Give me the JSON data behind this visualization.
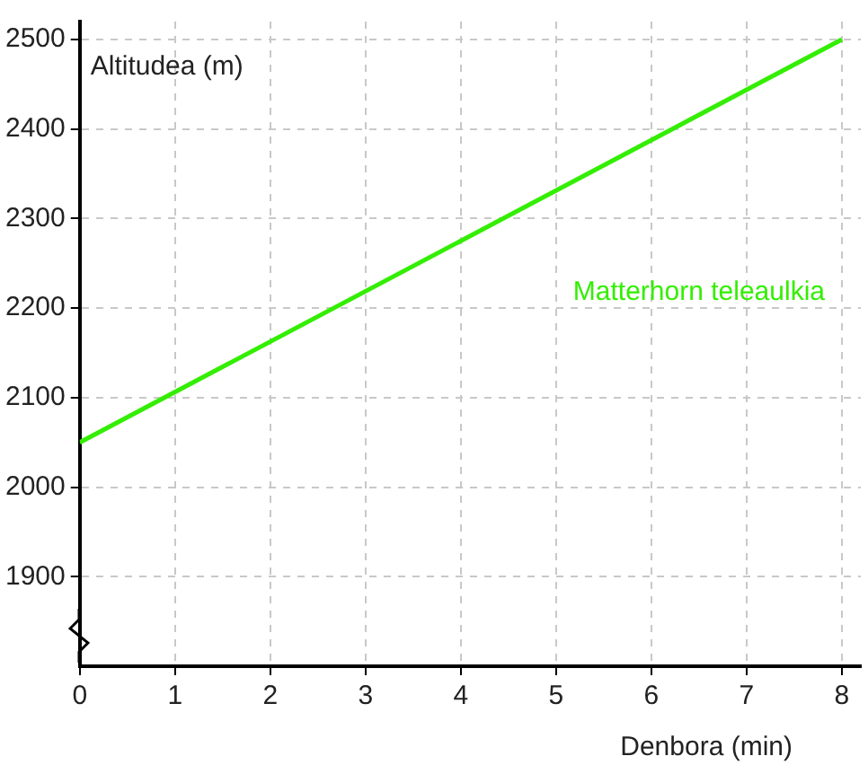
{
  "chart_data": {
    "type": "line",
    "xlabel": "Denbora (min)",
    "ylabel": "Altitudea (m)",
    "xlim": [
      0,
      8.2
    ],
    "xticks": [
      0,
      1,
      2,
      3,
      4,
      5,
      6,
      7,
      8
    ],
    "ylim": [
      1800,
      2520
    ],
    "yticks": [
      1900,
      2000,
      2100,
      2200,
      2300,
      2400,
      2500
    ],
    "series": [
      {
        "name": "Matterhorn teleaulkia",
        "color": "#33ee00",
        "x": [
          0,
          8
        ],
        "values": [
          2050,
          2500
        ]
      }
    ],
    "grid": true,
    "legend": false,
    "marker": "none",
    "line_style": "solid"
  }
}
